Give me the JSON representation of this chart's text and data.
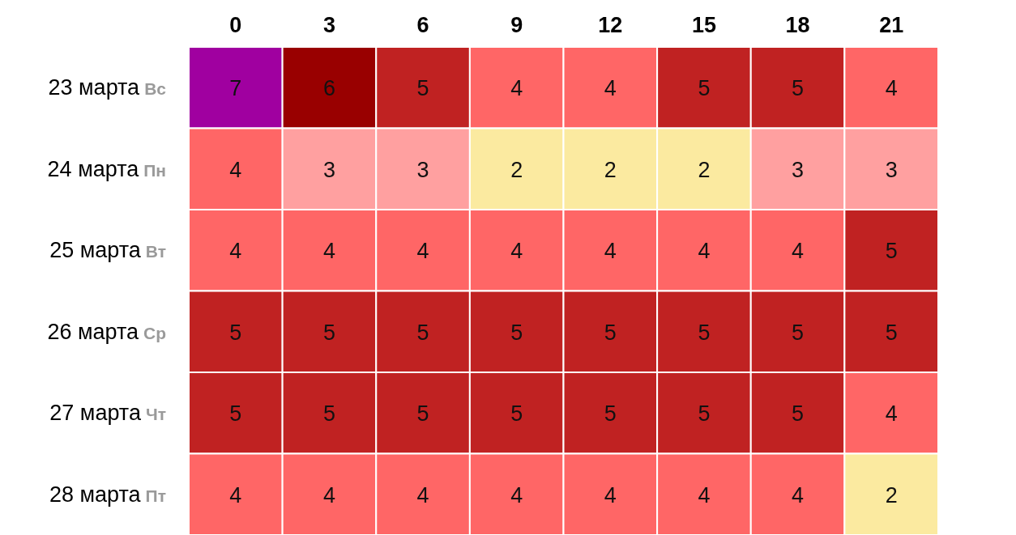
{
  "chart_data": {
    "type": "heatmap",
    "categories": [
      "0",
      "3",
      "6",
      "9",
      "12",
      "15",
      "18",
      "21"
    ],
    "y_categories": [
      "23 марта Вс",
      "24 марта Пн",
      "25 марта Вт",
      "26 марта Ср",
      "27 марта Чт",
      "28 марта Пт"
    ],
    "cells": [
      [
        7,
        6,
        5,
        4,
        4,
        5,
        5,
        4
      ],
      [
        4,
        3,
        3,
        2,
        2,
        2,
        3,
        3
      ],
      [
        4,
        4,
        4,
        4,
        4,
        4,
        4,
        5
      ],
      [
        5,
        5,
        5,
        5,
        5,
        5,
        5,
        5
      ],
      [
        5,
        5,
        5,
        5,
        5,
        5,
        5,
        4
      ],
      [
        4,
        4,
        4,
        4,
        4,
        4,
        4,
        2
      ]
    ],
    "colors": [
      [
        "#a000a0",
        "#990000",
        "#c02222",
        "#ff6666",
        "#ff6666",
        "#c02222",
        "#c02222",
        "#ff6666"
      ],
      [
        "#ff6666",
        "#ffa0a0",
        "#ffa0a0",
        "#fbeaa0",
        "#fbeaa0",
        "#fbeaa0",
        "#ffa0a0",
        "#ffa0a0"
      ],
      [
        "#ff6666",
        "#ff6666",
        "#ff6666",
        "#ff6666",
        "#ff6666",
        "#ff6666",
        "#ff6666",
        "#c02222"
      ],
      [
        "#c02222",
        "#c02222",
        "#c02222",
        "#c02222",
        "#c02222",
        "#c02222",
        "#c02222",
        "#c02222"
      ],
      [
        "#c02222",
        "#c02222",
        "#c02222",
        "#c02222",
        "#c02222",
        "#c02222",
        "#c02222",
        "#ff6666"
      ],
      [
        "#ff6666",
        "#ff6666",
        "#ff6666",
        "#ff6666",
        "#ff6666",
        "#ff6666",
        "#ff6666",
        "#fbeaa0"
      ]
    ],
    "data_labels": true
  }
}
